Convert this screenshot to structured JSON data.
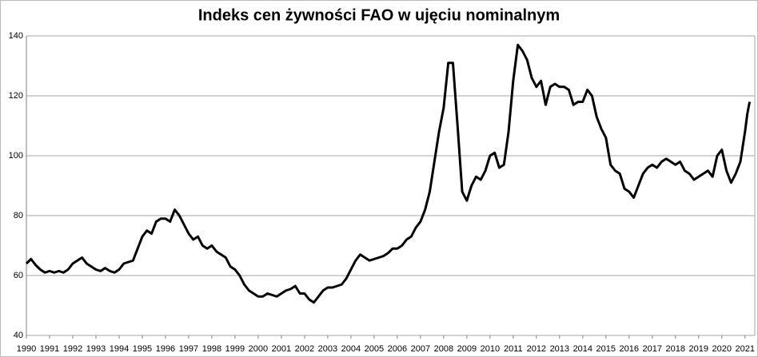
{
  "chart_data": {
    "type": "line",
    "title": "Indeks cen żywności FAO w ujęciu nominalnym",
    "x": [
      1990,
      1990.2,
      1990.4,
      1990.6,
      1990.8,
      1991,
      1991.2,
      1991.4,
      1991.6,
      1991.8,
      1992,
      1992.2,
      1992.4,
      1992.6,
      1992.8,
      1993,
      1993.2,
      1993.4,
      1993.6,
      1993.8,
      1994,
      1994.2,
      1994.4,
      1994.6,
      1994.8,
      1995,
      1995.2,
      1995.4,
      1995.6,
      1995.8,
      1996,
      1996.2,
      1996.4,
      1996.6,
      1996.8,
      1997,
      1997.2,
      1997.4,
      1997.6,
      1997.8,
      1998,
      1998.2,
      1998.4,
      1998.6,
      1998.8,
      1999,
      1999.2,
      1999.4,
      1999.6,
      1999.8,
      2000,
      2000.2,
      2000.4,
      2000.6,
      2000.8,
      2001,
      2001.2,
      2001.4,
      2001.6,
      2001.8,
      2002,
      2002.2,
      2002.4,
      2002.6,
      2002.8,
      2003,
      2003.2,
      2003.4,
      2003.6,
      2003.8,
      2004,
      2004.2,
      2004.4,
      2004.6,
      2004.8,
      2005,
      2005.2,
      2005.4,
      2005.6,
      2005.8,
      2006,
      2006.2,
      2006.4,
      2006.6,
      2006.8,
      2007,
      2007.2,
      2007.4,
      2007.6,
      2007.8,
      2008,
      2008.2,
      2008.4,
      2008.6,
      2008.8,
      2009,
      2009.2,
      2009.4,
      2009.6,
      2009.8,
      2010,
      2010.2,
      2010.4,
      2010.6,
      2010.8,
      2011,
      2011.2,
      2011.4,
      2011.6,
      2011.8,
      2012,
      2012.2,
      2012.4,
      2012.6,
      2012.8,
      2013,
      2013.2,
      2013.4,
      2013.6,
      2013.8,
      2014,
      2014.2,
      2014.4,
      2014.6,
      2014.8,
      2015,
      2015.2,
      2015.4,
      2015.6,
      2015.8,
      2016,
      2016.2,
      2016.4,
      2016.6,
      2016.8,
      2017,
      2017.2,
      2017.4,
      2017.6,
      2017.8,
      2018,
      2018.2,
      2018.4,
      2018.6,
      2018.8,
      2019,
      2019.2,
      2019.4,
      2019.6,
      2019.8,
      2020,
      2020.2,
      2020.4,
      2020.6,
      2020.8,
      2021,
      2021.1,
      2021.2
    ],
    "series": [
      {
        "name": "Indeks",
        "color": "#000000",
        "values": [
          64,
          65.5,
          63.5,
          62,
          61,
          61.5,
          61,
          61.5,
          61,
          62,
          64,
          65,
          66,
          64,
          63,
          62,
          61.5,
          62.5,
          61.5,
          61,
          62,
          64,
          64.5,
          65,
          69,
          73,
          75,
          74,
          78,
          79,
          79,
          78,
          82,
          80,
          77,
          74,
          72,
          73,
          70,
          69,
          70,
          68,
          67,
          66,
          63,
          62,
          60,
          57,
          55,
          54,
          53,
          53,
          54,
          53.5,
          53,
          54,
          55,
          55.5,
          56.5,
          54,
          54,
          52,
          51,
          53,
          55,
          56,
          56,
          56.5,
          57,
          59,
          62,
          65,
          67,
          66,
          65,
          65.5,
          66,
          66.5,
          67.5,
          69,
          69,
          70,
          72,
          73,
          76,
          78,
          82,
          88,
          98,
          108,
          116,
          131,
          131,
          110,
          88,
          85,
          90,
          93,
          92,
          95,
          100,
          101,
          96,
          97,
          108,
          125,
          137,
          135,
          132,
          126,
          123,
          125,
          117,
          123,
          124,
          123,
          123,
          122,
          117,
          118,
          118,
          122,
          120,
          113,
          109,
          106,
          97,
          95,
          94,
          89,
          88,
          86,
          90,
          94,
          96,
          97,
          96,
          98,
          99,
          98,
          97,
          98,
          95,
          94,
          92,
          93,
          94,
          95,
          93,
          100,
          102,
          95,
          91,
          94,
          98,
          108,
          114,
          118
        ]
      }
    ],
    "xlim": [
      1990,
      2021.25
    ],
    "xticks": [
      1990,
      1991,
      1992,
      1993,
      1994,
      1995,
      1996,
      1997,
      1998,
      1999,
      2000,
      2001,
      2002,
      2003,
      2004,
      2005,
      2006,
      2007,
      2008,
      2009,
      2010,
      2011,
      2012,
      2013,
      2014,
      2015,
      2016,
      2017,
      2018,
      2019,
      2020,
      2021
    ],
    "ylim": [
      40,
      140
    ],
    "yticks": [
      40,
      60,
      80,
      100,
      120,
      140
    ],
    "grid": true
  }
}
